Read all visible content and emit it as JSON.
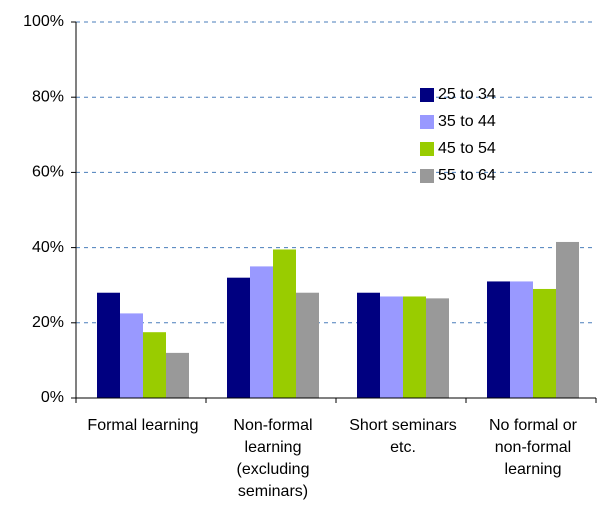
{
  "chart_data": {
    "type": "bar",
    "categories": [
      "Formal learning",
      "Non-formal learning (excluding seminars)",
      "Short seminars etc.",
      "No formal or non-formal learning"
    ],
    "series": [
      {
        "name": "25 to 34",
        "color": "#000080",
        "values": [
          28,
          32,
          28,
          31
        ]
      },
      {
        "name": "35 to 44",
        "color": "#9999ff",
        "values": [
          22.5,
          35,
          27,
          31
        ]
      },
      {
        "name": "45 to 54",
        "color": "#99cc00",
        "values": [
          17.5,
          39.5,
          27,
          29
        ]
      },
      {
        "name": "55 to 64",
        "color": "#999999",
        "values": [
          12,
          28,
          26.5,
          41.5
        ]
      }
    ],
    "ylim": [
      0,
      100
    ],
    "yticks": [
      {
        "value": 0,
        "label": "0%"
      },
      {
        "value": 20,
        "label": "20%"
      },
      {
        "value": 40,
        "label": "40%"
      },
      {
        "value": 60,
        "label": "60%"
      },
      {
        "value": 80,
        "label": "80%"
      },
      {
        "value": 100,
        "label": "100%"
      }
    ],
    "grid": true,
    "legend": "upper right"
  }
}
